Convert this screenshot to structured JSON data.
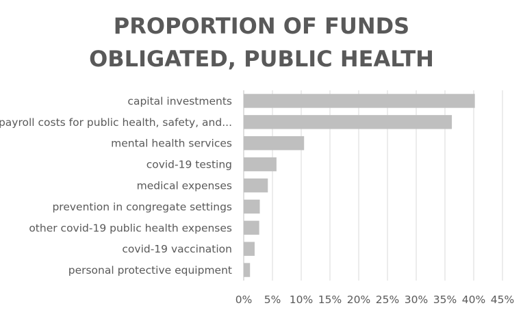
{
  "chart_data": {
    "type": "bar",
    "orientation": "horizontal",
    "title_lines": [
      "PROPORTION OF FUNDS",
      "OBLIGATED, PUBLIC HEALTH"
    ],
    "categories": [
      "capital investments",
      "payroll costs for public health, safety, and...",
      "mental health services",
      "covid-19 testing",
      "medical expenses",
      "prevention in congregate settings",
      "other covid-19 public health expenses",
      "covid-19 vaccination",
      "personal protective equipment"
    ],
    "values": [
      40.2,
      36.2,
      10.5,
      5.7,
      4.2,
      2.8,
      2.7,
      1.9,
      1.1
    ],
    "xlim": [
      0,
      45
    ],
    "xticks": [
      0,
      5,
      10,
      15,
      20,
      25,
      30,
      35,
      40,
      45
    ],
    "xtick_labels": [
      "0%",
      "5%",
      "10%",
      "15%",
      "20%",
      "25%",
      "30%",
      "35%",
      "40%",
      "45%"
    ],
    "xlabel": "",
    "ylabel": "",
    "grid": true,
    "bar_color": "#bfbfbf",
    "text_color": "#595959",
    "grid_color": "#d9d9d9"
  }
}
